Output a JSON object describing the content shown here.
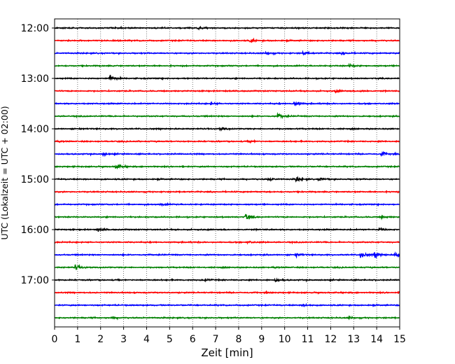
{
  "chart_data": {
    "type": "line",
    "title": "",
    "xlabel": "Zeit  [min]",
    "ylabel": "UTC (Lokalzeit = UTC + 02:00)",
    "xlim": [
      0,
      15
    ],
    "x_ticks": [
      "0",
      "1",
      "2",
      "3",
      "4",
      "5",
      "6",
      "7",
      "8",
      "9",
      "10",
      "11",
      "12",
      "13",
      "14",
      "15"
    ],
    "y_tick_labels": [
      "12:00",
      "13:00",
      "14:00",
      "15:00",
      "16:00",
      "17:00"
    ],
    "grid": "vertical-dotted",
    "trace_interval_min": 15,
    "colors": [
      "#000000",
      "#ff0000",
      "#0000ff",
      "#008000"
    ],
    "traces": [
      {
        "start": "12:00",
        "color": "#000000",
        "events": [
          [
            2.9,
            0.25
          ],
          [
            6.2,
            0.3
          ]
        ]
      },
      {
        "start": "12:15",
        "color": "#ff0000",
        "events": [
          [
            8.5,
            0.35
          ]
        ]
      },
      {
        "start": "12:30",
        "color": "#0000ff",
        "events": [
          [
            9.2,
            0.35
          ],
          [
            10.8,
            0.4
          ],
          [
            12.5,
            0.3
          ]
        ]
      },
      {
        "start": "12:45",
        "color": "#008000",
        "events": [
          [
            12.8,
            0.3
          ]
        ]
      },
      {
        "start": "13:00",
        "color": "#000000",
        "events": [
          [
            2.4,
            0.8
          ]
        ]
      },
      {
        "start": "13:15",
        "color": "#ff0000",
        "events": [
          [
            12.2,
            0.3
          ],
          [
            13.3,
            0.35
          ]
        ]
      },
      {
        "start": "13:30",
        "color": "#0000ff",
        "events": [
          [
            6.8,
            0.3
          ],
          [
            10.4,
            0.7
          ]
        ]
      },
      {
        "start": "13:45",
        "color": "#008000",
        "events": [
          [
            9.7,
            0.6
          ]
        ]
      },
      {
        "start": "14:00",
        "color": "#000000",
        "events": [
          [
            7.2,
            0.3
          ]
        ]
      },
      {
        "start": "14:15",
        "color": "#ff0000",
        "events": [
          [
            8.5,
            0.25
          ]
        ]
      },
      {
        "start": "14:30",
        "color": "#0000ff",
        "events": [
          [
            2.1,
            0.35
          ],
          [
            14.2,
            0.5
          ]
        ]
      },
      {
        "start": "14:45",
        "color": "#008000",
        "events": [
          [
            2.65,
            0.7
          ]
        ]
      },
      {
        "start": "15:00",
        "color": "#000000",
        "events": [
          [
            9.3,
            0.5
          ],
          [
            10.5,
            0.6
          ],
          [
            11.5,
            0.4
          ]
        ]
      },
      {
        "start": "15:15",
        "color": "#ff0000",
        "events": []
      },
      {
        "start": "15:30",
        "color": "#0000ff",
        "events": [
          [
            4.6,
            0.25
          ]
        ]
      },
      {
        "start": "15:45",
        "color": "#008000",
        "events": [
          [
            8.3,
            1.0
          ],
          [
            14.2,
            0.3
          ]
        ]
      },
      {
        "start": "16:00",
        "color": "#000000",
        "events": [
          [
            1.9,
            0.4
          ],
          [
            14.1,
            0.35
          ]
        ]
      },
      {
        "start": "16:15",
        "color": "#ff0000",
        "events": [
          [
            8.4,
            0.25
          ]
        ]
      },
      {
        "start": "16:30",
        "color": "#0000ff",
        "events": [
          [
            10.5,
            0.35
          ],
          [
            13.3,
            0.8
          ],
          [
            13.9,
            0.8
          ],
          [
            14.8,
            0.6
          ]
        ]
      },
      {
        "start": "16:45",
        "color": "#008000",
        "events": [
          [
            0.9,
            0.6
          ]
        ]
      },
      {
        "start": "17:00",
        "color": "#000000",
        "events": [
          [
            6.5,
            0.3
          ],
          [
            9.6,
            0.4
          ]
        ]
      },
      {
        "start": "17:15",
        "color": "#ff0000",
        "events": []
      },
      {
        "start": "17:30",
        "color": "#0000ff",
        "events": [
          [
            10.8,
            0.4
          ]
        ]
      },
      {
        "start": "17:45",
        "color": "#008000",
        "events": [
          [
            2.5,
            0.3
          ],
          [
            12.8,
            0.25
          ]
        ]
      }
    ]
  }
}
